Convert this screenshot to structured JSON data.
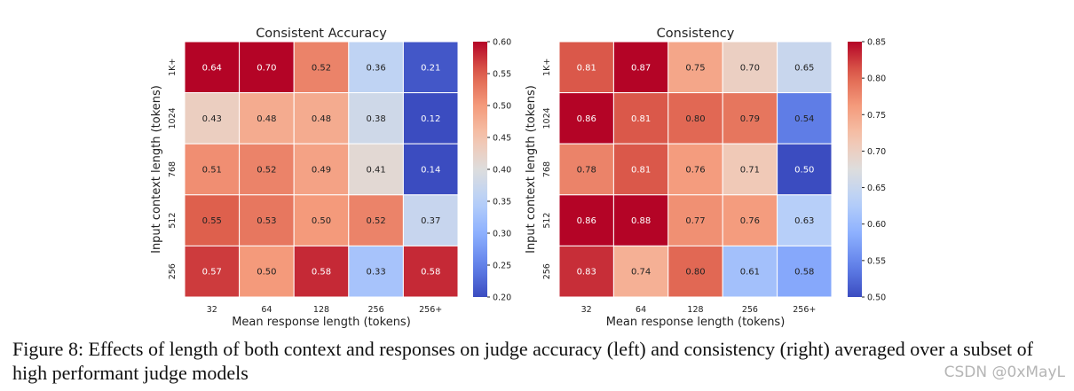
{
  "chart_data": [
    {
      "type": "heatmap",
      "title": "Consistent Accuracy",
      "xlabel": "Mean response length (tokens)",
      "ylabel": "Input context length (tokens)",
      "x_categories": [
        "32",
        "64",
        "128",
        "256",
        "256+"
      ],
      "y_categories": [
        "1K+",
        "1024",
        "768",
        "512",
        "256"
      ],
      "values": [
        [
          0.64,
          0.7,
          0.52,
          0.36,
          0.21
        ],
        [
          0.43,
          0.48,
          0.48,
          0.38,
          0.12
        ],
        [
          0.51,
          0.52,
          0.49,
          0.41,
          0.14
        ],
        [
          0.55,
          0.53,
          0.5,
          0.52,
          0.37
        ],
        [
          0.57,
          0.5,
          0.58,
          0.33,
          0.58
        ]
      ],
      "labels": [
        [
          "0.64",
          "0.70",
          "0.52",
          "0.36",
          "0.21"
        ],
        [
          "0.43",
          "0.48",
          "0.48",
          "0.38",
          "0.12"
        ],
        [
          "0.51",
          "0.52",
          "0.49",
          "0.41",
          "0.14"
        ],
        [
          "0.55",
          "0.53",
          "0.50",
          "0.52",
          "0.37"
        ],
        [
          "0.57",
          "0.50",
          "0.58",
          "0.33",
          "0.58"
        ]
      ],
      "colorbar": {
        "min": 0.2,
        "max": 0.6,
        "ticks": [
          0.6,
          0.55,
          0.5,
          0.45,
          0.4,
          0.35,
          0.3,
          0.25,
          0.2
        ],
        "tick_labels": [
          "0.60",
          "0.55",
          "0.50",
          "0.45",
          "0.40",
          "0.35",
          "0.30",
          "0.25",
          "0.20"
        ]
      },
      "colormap": "coolwarm"
    },
    {
      "type": "heatmap",
      "title": "Consistency",
      "xlabel": "Mean response length (tokens)",
      "ylabel": "Input context length (tokens)",
      "x_categories": [
        "32",
        "64",
        "128",
        "256",
        "256+"
      ],
      "y_categories": [
        "1K+",
        "1024",
        "768",
        "512",
        "256"
      ],
      "values": [
        [
          0.81,
          0.87,
          0.75,
          0.7,
          0.65
        ],
        [
          0.86,
          0.81,
          0.8,
          0.79,
          0.54
        ],
        [
          0.78,
          0.81,
          0.76,
          0.71,
          0.5
        ],
        [
          0.86,
          0.88,
          0.77,
          0.76,
          0.63
        ],
        [
          0.83,
          0.74,
          0.8,
          0.61,
          0.58
        ]
      ],
      "labels": [
        [
          "0.81",
          "0.87",
          "0.75",
          "0.70",
          "0.65"
        ],
        [
          "0.86",
          "0.81",
          "0.80",
          "0.79",
          "0.54"
        ],
        [
          "0.78",
          "0.81",
          "0.76",
          "0.71",
          "0.50"
        ],
        [
          "0.86",
          "0.88",
          "0.77",
          "0.76",
          "0.63"
        ],
        [
          "0.83",
          "0.74",
          "0.80",
          "0.61",
          "0.58"
        ]
      ],
      "colorbar": {
        "min": 0.5,
        "max": 0.85,
        "ticks": [
          0.85,
          0.8,
          0.75,
          0.7,
          0.65,
          0.6,
          0.55,
          0.5
        ],
        "tick_labels": [
          "0.85",
          "0.80",
          "0.75",
          "0.70",
          "0.65",
          "0.60",
          "0.55",
          "0.50"
        ]
      },
      "colormap": "coolwarm"
    }
  ],
  "caption": "Figure 8: Effects of length of both context and responses on judge accuracy (left) and consistency (right) averaged over a subset of high performant judge models",
  "watermark": "CSDN @0xMayL"
}
